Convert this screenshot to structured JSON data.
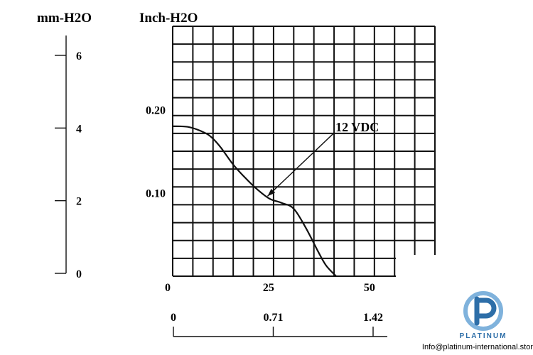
{
  "chart_data": {
    "type": "line",
    "title": "",
    "ylabel_left": "mm-H2O",
    "ylabel_right": "Inch-H2O",
    "left_axis": {
      "ticks": [
        "6",
        "4",
        "2",
        "0"
      ],
      "values": [
        6,
        4,
        2,
        0
      ]
    },
    "inch_axis": {
      "ticks": [
        "0.20",
        "0.10"
      ],
      "values": [
        0.2,
        0.1
      ],
      "ylim": [
        0,
        0.3
      ]
    },
    "x_axis_top": {
      "ticks": [
        "0",
        "25",
        "50"
      ],
      "values": [
        0,
        25,
        50
      ],
      "xlim": [
        0,
        65
      ]
    },
    "x_axis_bottom": {
      "ticks": [
        "0",
        "0.71",
        "1.42"
      ],
      "values": [
        0,
        0.71,
        1.42
      ]
    },
    "grid": true,
    "series": [
      {
        "x": [
          0,
          4,
          8,
          10,
          12,
          15,
          18,
          21,
          24,
          27,
          30,
          33,
          36,
          38,
          40.5
        ],
        "y": [
          0.18,
          0.179,
          0.172,
          0.165,
          0.154,
          0.134,
          0.118,
          0.104,
          0.093,
          0.088,
          0.081,
          0.058,
          0.03,
          0.013,
          0.0
        ]
      }
    ],
    "annotations": [
      {
        "text": "12 VDC",
        "point": [
          23.5,
          0.096
        ],
        "label_at": [
          40,
          0.172
        ]
      }
    ]
  },
  "watermark": {
    "brand": "PLATINUM",
    "email": "Info@platinum-international.store",
    "primary_color": "#2d6ea8",
    "accent_color": "#7fb2dc"
  }
}
